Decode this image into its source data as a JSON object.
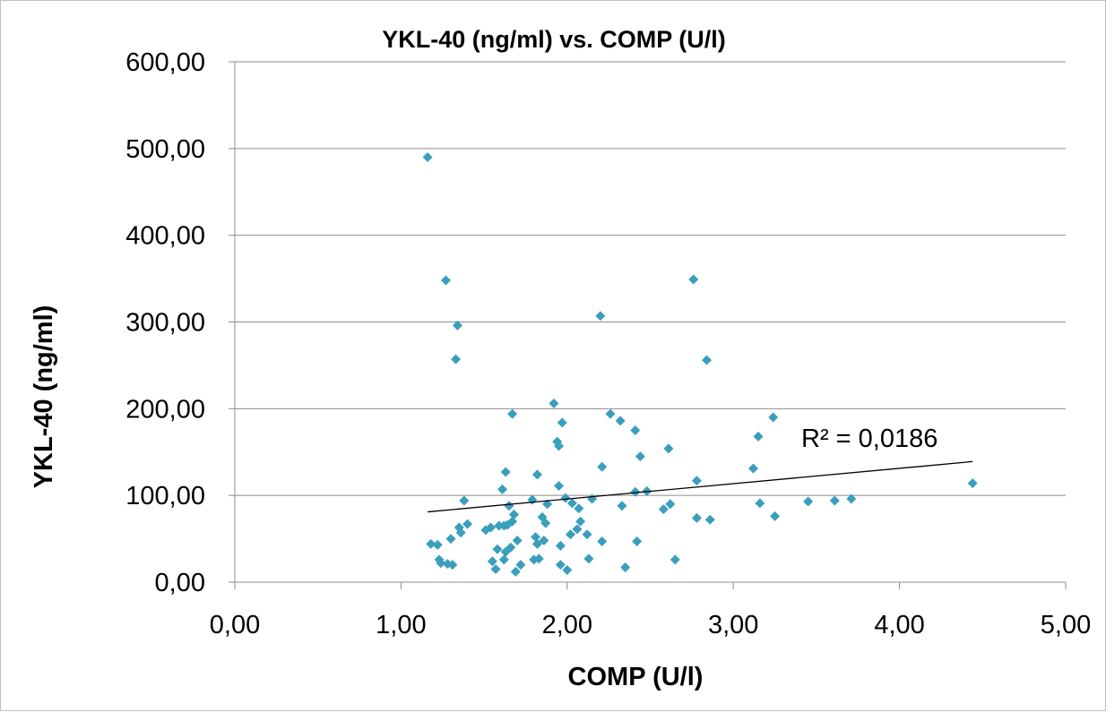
{
  "chart_data": {
    "type": "scatter",
    "title": "YKL-40 (ng/ml) vs. COMP (U/l)",
    "xlabel": "COMP (U/l)",
    "ylabel": "YKL-40 (ng/ml)",
    "xlim": [
      0,
      5
    ],
    "ylim": [
      0,
      600
    ],
    "x_ticks": [
      "0,00",
      "1,00",
      "2,00",
      "3,00",
      "4,00",
      "5,00"
    ],
    "y_ticks": [
      "0,00",
      "100,00",
      "200,00",
      "300,00",
      "400,00",
      "500,00",
      "600,00"
    ],
    "grid": "horizontal",
    "marker": "diamond",
    "series": [
      {
        "color": "#3a9ebd",
        "points": [
          [
            1.16,
            490
          ],
          [
            1.27,
            348
          ],
          [
            1.34,
            296
          ],
          [
            1.33,
            257
          ],
          [
            1.18,
            44
          ],
          [
            1.22,
            43
          ],
          [
            1.23,
            26
          ],
          [
            1.24,
            22
          ],
          [
            1.28,
            21
          ],
          [
            1.31,
            20
          ],
          [
            1.3,
            50
          ],
          [
            1.35,
            63
          ],
          [
            1.38,
            94
          ],
          [
            1.4,
            67
          ],
          [
            1.36,
            57
          ],
          [
            1.51,
            60
          ],
          [
            1.54,
            63
          ],
          [
            1.55,
            24
          ],
          [
            1.57,
            15
          ],
          [
            1.58,
            38
          ],
          [
            1.59,
            65
          ],
          [
            1.61,
            107
          ],
          [
            1.62,
            65
          ],
          [
            1.62,
            26
          ],
          [
            1.63,
            127
          ],
          [
            1.63,
            35
          ],
          [
            1.64,
            66
          ],
          [
            1.65,
            88
          ],
          [
            1.66,
            40
          ],
          [
            1.67,
            194
          ],
          [
            1.67,
            70
          ],
          [
            1.68,
            78
          ],
          [
            1.69,
            12
          ],
          [
            1.7,
            48
          ],
          [
            1.72,
            20
          ],
          [
            1.79,
            95
          ],
          [
            1.8,
            26
          ],
          [
            1.81,
            52
          ],
          [
            1.82,
            124
          ],
          [
            1.82,
            44
          ],
          [
            1.83,
            27
          ],
          [
            1.85,
            75
          ],
          [
            1.86,
            48
          ],
          [
            1.87,
            68
          ],
          [
            1.88,
            90
          ],
          [
            1.92,
            206
          ],
          [
            1.94,
            162
          ],
          [
            1.95,
            157
          ],
          [
            1.95,
            111
          ],
          [
            1.96,
            42
          ],
          [
            1.96,
            20
          ],
          [
            1.97,
            184
          ],
          [
            1.99,
            97
          ],
          [
            2.0,
            14
          ],
          [
            2.02,
            55
          ],
          [
            2.03,
            91
          ],
          [
            2.06,
            61
          ],
          [
            2.07,
            85
          ],
          [
            2.08,
            70
          ],
          [
            2.12,
            55
          ],
          [
            2.13,
            27
          ],
          [
            2.15,
            96
          ],
          [
            2.2,
            307
          ],
          [
            2.21,
            133
          ],
          [
            2.21,
            47
          ],
          [
            2.26,
            194
          ],
          [
            2.32,
            186
          ],
          [
            2.33,
            88
          ],
          [
            2.35,
            17
          ],
          [
            2.41,
            175
          ],
          [
            2.41,
            104
          ],
          [
            2.42,
            47
          ],
          [
            2.44,
            145
          ],
          [
            2.48,
            105
          ],
          [
            2.58,
            84
          ],
          [
            2.61,
            154
          ],
          [
            2.62,
            90
          ],
          [
            2.65,
            26
          ],
          [
            2.76,
            349
          ],
          [
            2.78,
            117
          ],
          [
            2.78,
            74
          ],
          [
            2.84,
            256
          ],
          [
            2.86,
            72
          ],
          [
            3.12,
            131
          ],
          [
            3.15,
            168
          ],
          [
            3.16,
            91
          ],
          [
            3.24,
            190
          ],
          [
            3.25,
            76
          ],
          [
            3.45,
            93
          ],
          [
            3.61,
            94
          ],
          [
            3.71,
            96
          ],
          [
            4.44,
            114
          ]
        ]
      }
    ],
    "trendline": {
      "type": "linear",
      "x_range": [
        1.16,
        4.44
      ],
      "y_range": [
        81,
        139
      ],
      "r2_label": "R² = 0,0186",
      "color": "#000000"
    }
  }
}
